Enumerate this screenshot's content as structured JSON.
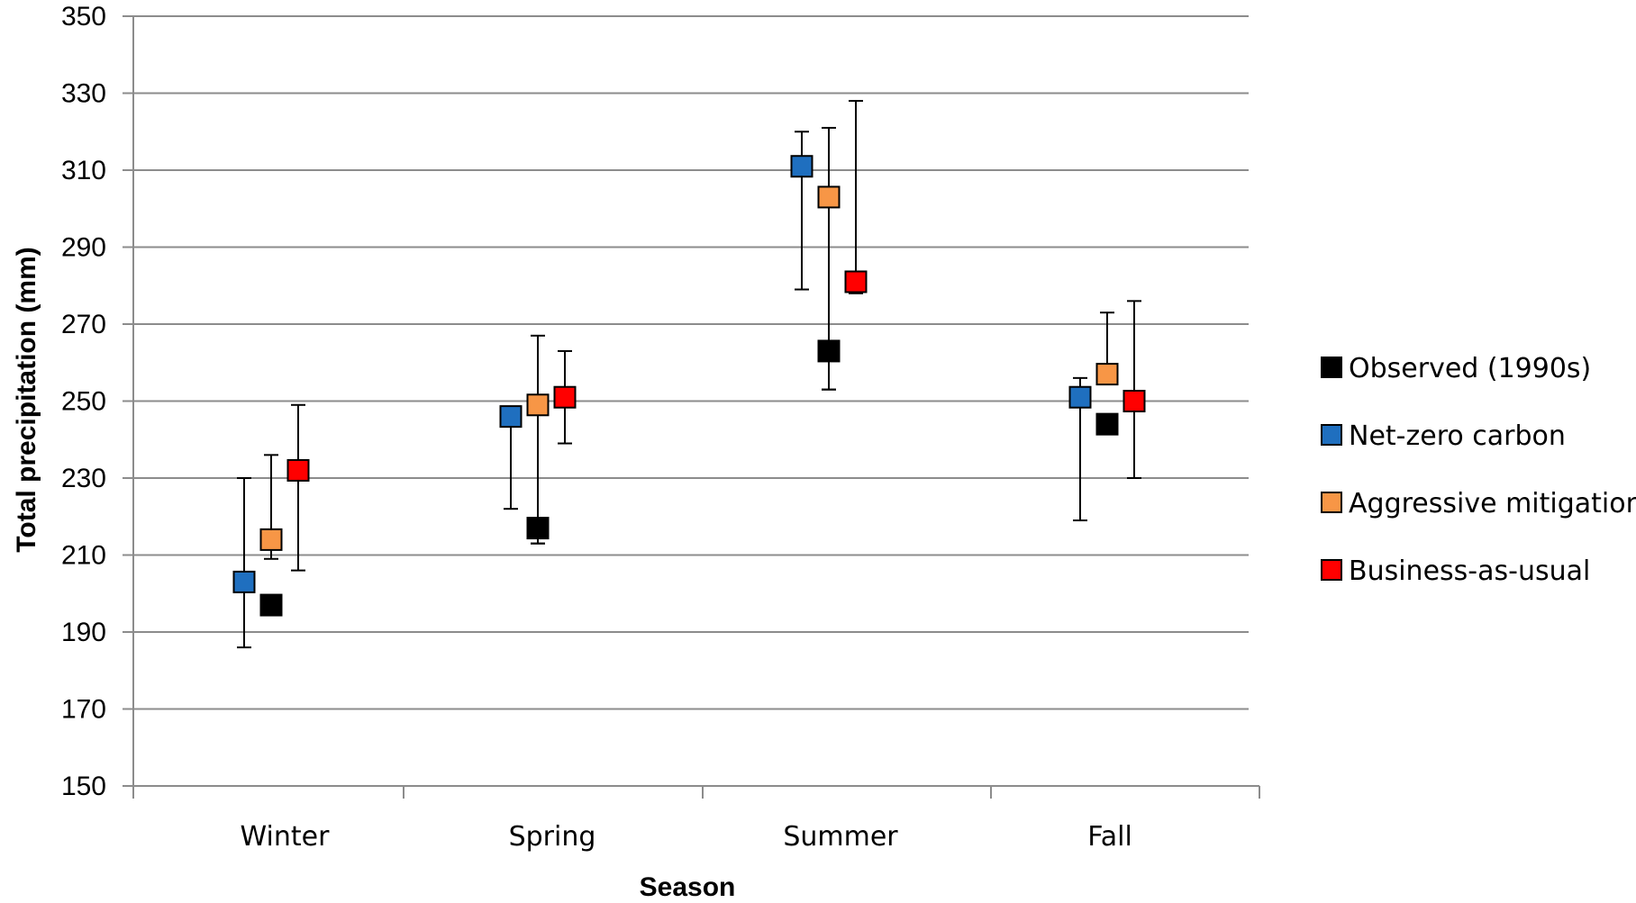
{
  "chart_data": {
    "type": "scatter",
    "xlabel": "Season",
    "ylabel": "Total precipitation  (mm)",
    "categories": [
      "Winter",
      "Spring",
      "Summer",
      "Fall"
    ],
    "ylim": [
      150,
      350
    ],
    "yticks": [
      150,
      170,
      190,
      210,
      230,
      250,
      270,
      290,
      310,
      330,
      350
    ],
    "grid": true,
    "legend_position": "right",
    "series": [
      {
        "name": "Observed (1990s)",
        "color": "#000000",
        "values": [
          197,
          217,
          263,
          244
        ],
        "err_low": [
          null,
          213,
          253,
          null
        ],
        "err_high": [
          null,
          null,
          null,
          null
        ]
      },
      {
        "name": "Net-zero carbon",
        "color": "#1f6fbf",
        "values": [
          203,
          246,
          311,
          251
        ],
        "err_low": [
          186,
          222,
          279,
          219
        ],
        "err_high": [
          230,
          null,
          320,
          256
        ]
      },
      {
        "name": "Aggressive mitigation",
        "color": "#f79646",
        "values": [
          214,
          249,
          303,
          257
        ],
        "err_low": [
          209,
          213,
          253,
          null
        ],
        "err_high": [
          236,
          267,
          321,
          273
        ]
      },
      {
        "name": "Business-as-usual",
        "color": "#ff0000",
        "values": [
          232,
          251,
          281,
          250
        ],
        "err_low": [
          206,
          239,
          278,
          230
        ],
        "err_high": [
          249,
          263,
          328,
          276
        ]
      }
    ]
  }
}
